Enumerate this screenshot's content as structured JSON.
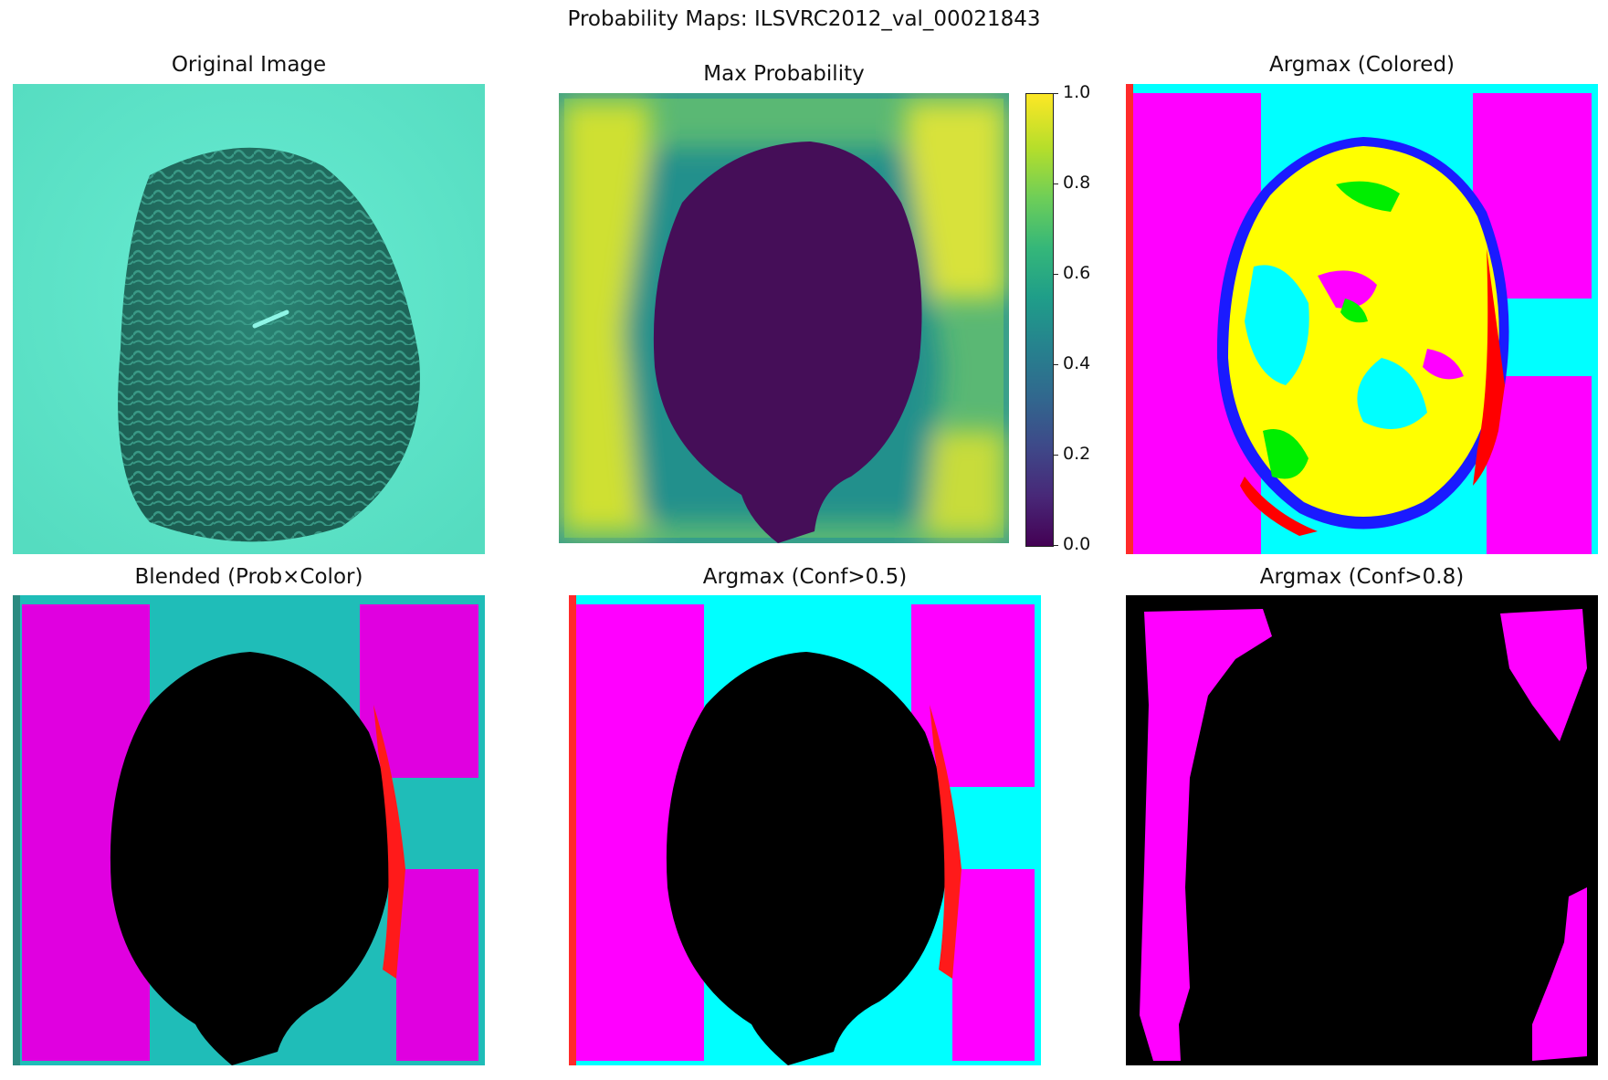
{
  "figure": {
    "title": "Probability Maps: ILSVRC2012_val_00021843"
  },
  "panels": {
    "original": {
      "title": "Original Image"
    },
    "max_prob": {
      "title": "Max Probability"
    },
    "argmax_colored": {
      "title": "Argmax (Colored)"
    },
    "blended": {
      "title": "Blended (Prob×Color)"
    },
    "conf05": {
      "title": "Argmax (Conf>0.5)"
    },
    "conf08": {
      "title": "Argmax (Conf>0.8)"
    }
  },
  "colorbar": {
    "ticks": [
      "0.0",
      "0.2",
      "0.4",
      "0.6",
      "0.8",
      "1.0"
    ],
    "colormap": "viridis"
  },
  "colors": {
    "magenta": "#ff00ff",
    "cyan": "#00ffff",
    "yellow": "#ffff00",
    "green": "#00ee00",
    "red": "#ff0000",
    "blue": "#1a1aff",
    "black": "#000000",
    "sand": "#5fe8cc",
    "coral": "#237868"
  }
}
